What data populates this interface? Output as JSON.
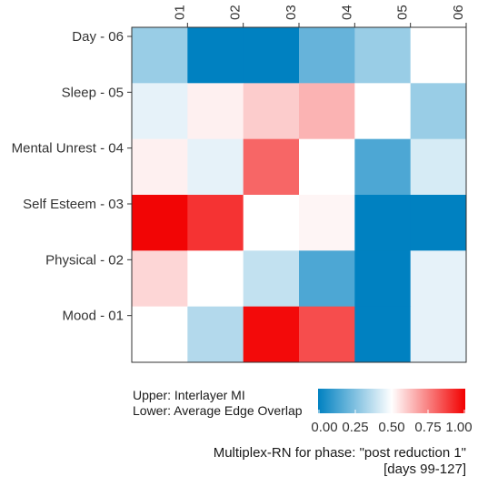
{
  "chart_data": {
    "type": "heatmap",
    "title": "",
    "x_categories": [
      "01",
      "02",
      "03",
      "04",
      "05",
      "06"
    ],
    "y_categories": [
      "Day - 06",
      "Sleep - 05",
      "Mental Unrest - 04",
      "Self Esteem - 03",
      "Physical - 02",
      "Mood - 01"
    ],
    "values": [
      [
        0.3,
        0.0,
        0.0,
        0.2,
        0.3,
        0.5
      ],
      [
        0.45,
        0.53,
        0.6,
        0.65,
        0.5,
        0.3
      ],
      [
        0.53,
        0.45,
        0.8,
        0.5,
        0.15,
        0.42
      ],
      [
        0.99,
        0.9,
        0.5,
        0.52,
        0.0,
        0.0
      ],
      [
        0.58,
        0.5,
        0.38,
        0.15,
        0.0,
        0.45
      ],
      [
        0.5,
        0.35,
        0.98,
        0.85,
        0.0,
        0.45
      ]
    ],
    "color_scale": {
      "min": 0.0,
      "max": 1.0,
      "colors": [
        "#0081c1",
        "#ffffff",
        "#f20000"
      ],
      "ticks": [
        "0.00",
        "0.25",
        "0.50",
        "0.75",
        "1.00"
      ]
    },
    "legend_lines": [
      "Upper: Interlayer MI",
      "Lower: Average Edge Overlap"
    ],
    "caption_lines": [
      "Multiplex-RN for phase: \"post reduction 1\"",
      "[days 99-127]"
    ]
  }
}
